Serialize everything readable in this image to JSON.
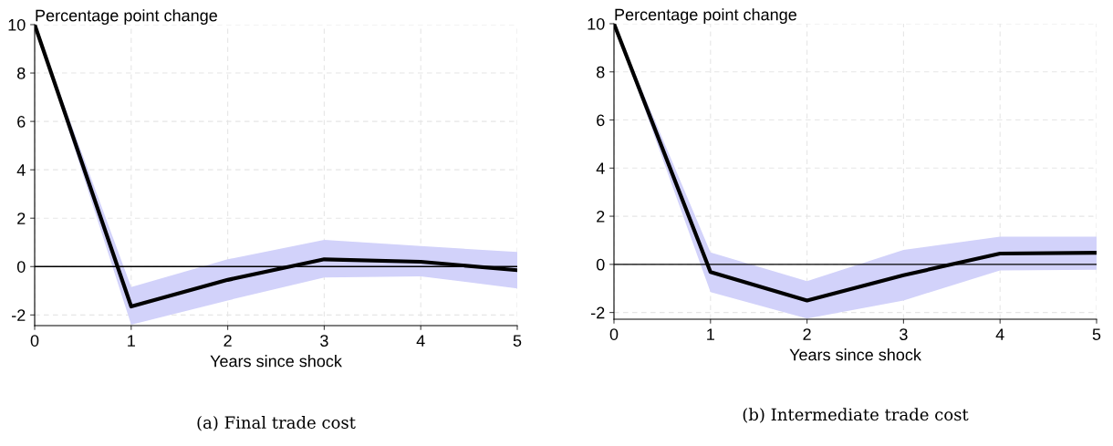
{
  "chart_data": [
    {
      "type": "line",
      "ylabel": "Percentage point change",
      "xlabel": "Years since shock",
      "annotations": [
        "(a) Final trade cost"
      ],
      "x": [
        0,
        1,
        2,
        3,
        4,
        5
      ],
      "xlim": [
        0,
        5
      ],
      "xticks": [
        0,
        1,
        2,
        3,
        4,
        5
      ],
      "ylim": [
        -2.44,
        10
      ],
      "yticks": [
        {
          "value": -2,
          "label": "-2"
        },
        0,
        2,
        4,
        6,
        8,
        10
      ],
      "grid": true,
      "legend": false,
      "marker": "none",
      "line_style": "solid",
      "ref_lines": [
        {
          "axis": "y",
          "value": 0,
          "color": "#000000"
        }
      ],
      "series": [
        {
          "color": "#000000",
          "values": [
            10,
            -1.65,
            -0.55,
            0.3,
            0.2,
            -0.15
          ],
          "lower": [
            10,
            -2.4,
            -1.4,
            -0.45,
            -0.4,
            -0.9
          ],
          "upper": [
            10,
            -0.85,
            0.3,
            1.1,
            0.85,
            0.6
          ]
        }
      ]
    },
    {
      "type": "line",
      "ylabel": "Percentage point change",
      "xlabel": "Years since shock",
      "annotations": [
        "(b) Intermediate trade cost"
      ],
      "x": [
        0,
        1,
        2,
        3,
        4,
        5
      ],
      "xlim": [
        0,
        5
      ],
      "xticks": [
        0,
        1,
        2,
        3,
        4,
        5
      ],
      "ylim": [
        -2.28,
        10
      ],
      "yticks": [
        {
          "value": -2,
          "label": "-2"
        },
        0,
        2,
        4,
        6,
        8,
        10
      ],
      "grid": true,
      "legend": false,
      "marker": "none",
      "line_style": "solid",
      "ref_lines": [
        {
          "axis": "y",
          "value": 0,
          "color": "#000000"
        }
      ],
      "series": [
        {
          "color": "#000000",
          "values": [
            10,
            -0.32,
            -1.5,
            -0.45,
            0.45,
            0.48
          ],
          "lower": [
            10,
            -1.15,
            -2.25,
            -1.5,
            -0.25,
            -0.22
          ],
          "upper": [
            10,
            0.5,
            -0.7,
            0.6,
            1.15,
            1.15
          ]
        }
      ]
    }
  ]
}
